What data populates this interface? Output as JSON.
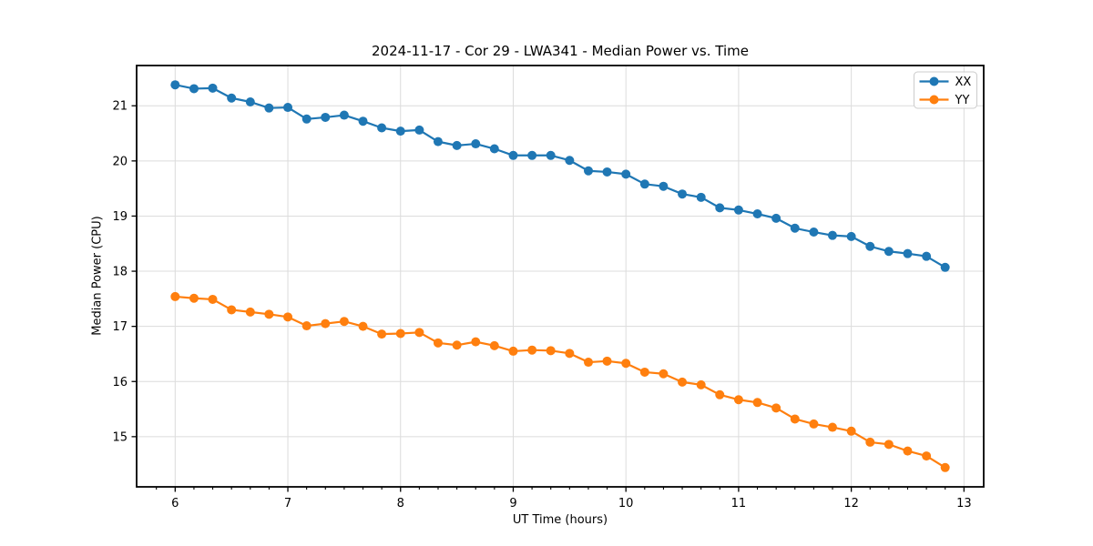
{
  "chart_data": {
    "type": "line",
    "title": "2024-11-17 - Cor 29 - LWA341 - Median Power vs. Time",
    "xlabel": "UT Time (hours)",
    "ylabel": "Median Power (CPU)",
    "xlim": [
      5.658,
      13.175
    ],
    "ylim": [
      14.09,
      21.73
    ],
    "x_major_ticks": [
      6,
      7,
      8,
      9,
      10,
      11,
      12,
      13
    ],
    "y_major_ticks": [
      15,
      16,
      17,
      18,
      19,
      20,
      21
    ],
    "x_minor_tick_step": 0.1667,
    "grid": true,
    "grid_color": "#dcdcdc",
    "axis_color": "#000000",
    "legend_position": "upper right",
    "marker": "circle",
    "x": [
      6.0,
      6.167,
      6.333,
      6.5,
      6.667,
      6.833,
      7.0,
      7.167,
      7.333,
      7.5,
      7.667,
      7.833,
      8.0,
      8.167,
      8.333,
      8.5,
      8.667,
      8.833,
      9.0,
      9.167,
      9.333,
      9.5,
      9.667,
      9.833,
      10.0,
      10.167,
      10.333,
      10.5,
      10.667,
      10.833,
      11.0,
      11.167,
      11.333,
      11.5,
      11.667,
      11.833,
      12.0,
      12.167,
      12.333,
      12.5,
      12.667,
      12.833
    ],
    "series": [
      {
        "name": "XX",
        "color": "#1f77b4",
        "values": [
          21.38,
          21.31,
          21.32,
          21.14,
          21.07,
          20.96,
          20.97,
          20.76,
          20.79,
          20.83,
          20.72,
          20.6,
          20.54,
          20.56,
          20.35,
          20.28,
          20.31,
          20.22,
          20.1,
          20.1,
          20.1,
          20.01,
          19.82,
          19.8,
          19.76,
          19.58,
          19.54,
          19.4,
          19.34,
          19.15,
          19.11,
          19.04,
          18.96,
          18.78,
          18.71,
          18.65,
          18.63,
          18.45,
          18.36,
          18.32,
          18.27,
          18.07
        ]
      },
      {
        "name": "YY",
        "color": "#ff7f0e",
        "values": [
          17.54,
          17.51,
          17.49,
          17.3,
          17.26,
          17.22,
          17.17,
          17.01,
          17.05,
          17.09,
          17.0,
          16.86,
          16.87,
          16.89,
          16.7,
          16.66,
          16.72,
          16.65,
          16.55,
          16.57,
          16.56,
          16.51,
          16.35,
          16.37,
          16.33,
          16.17,
          16.14,
          15.99,
          15.94,
          15.76,
          15.67,
          15.62,
          15.52,
          15.32,
          15.23,
          15.17,
          15.1,
          14.9,
          14.86,
          14.74,
          14.65,
          14.44
        ]
      }
    ]
  }
}
